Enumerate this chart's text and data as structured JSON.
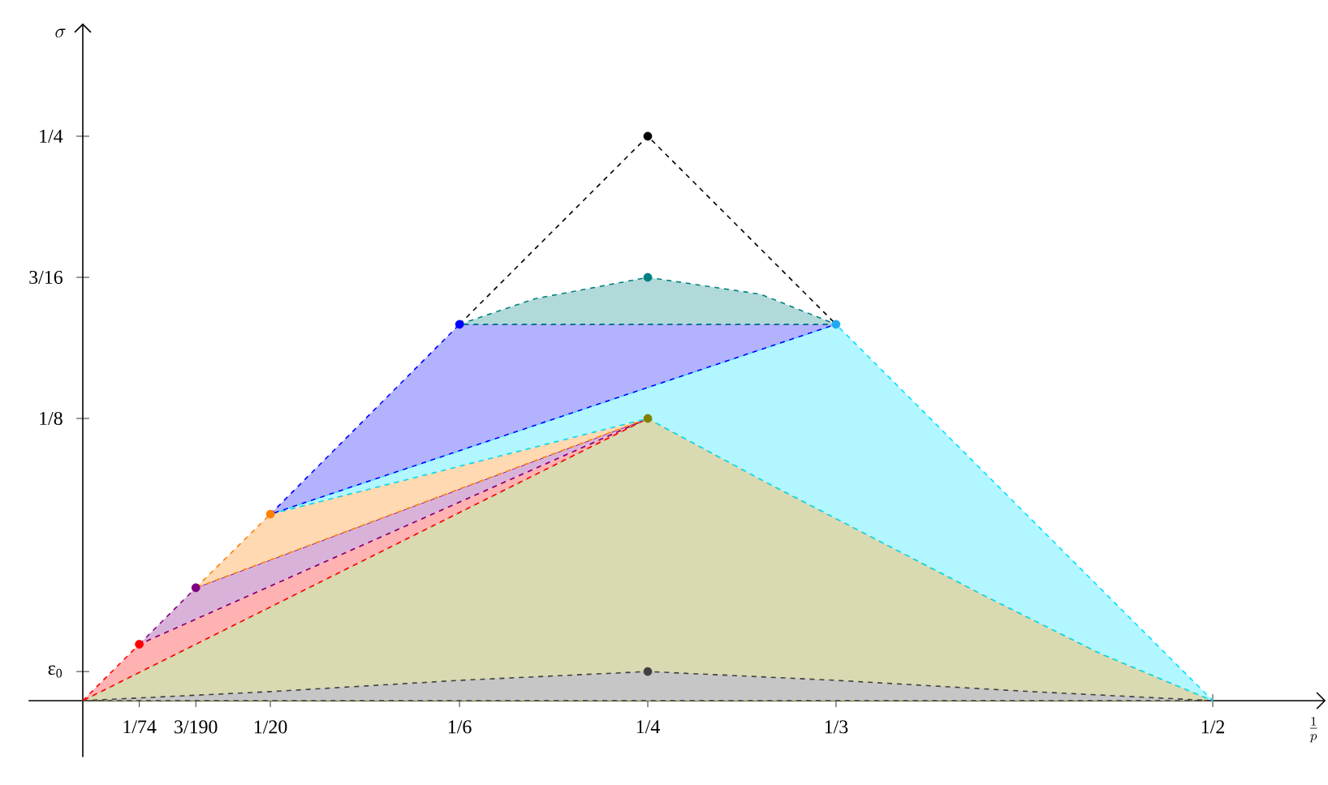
{
  "chart_data": {
    "type": "area",
    "xlabel": "\\frac{1}{p}",
    "ylabel": "\\sigma",
    "xlim": [
      -0.024,
      0.55
    ],
    "ylim": [
      -0.025,
      0.3
    ],
    "xticks": [
      {
        "value": 0.025,
        "label": "1/74"
      },
      {
        "value": 0.05,
        "label": "3/190"
      },
      {
        "value": 0.083,
        "label": "1/20"
      },
      {
        "value": 0.1667,
        "label": "1/6"
      },
      {
        "value": 0.25,
        "label": "1/4"
      },
      {
        "value": 0.3333,
        "label": "1/3"
      },
      {
        "value": 0.5,
        "label": "1/2"
      }
    ],
    "yticks": [
      {
        "value": 0.0129,
        "label": "ε$_{0}$"
      },
      {
        "value": 0.125,
        "label": "1/8"
      },
      {
        "value": 0.1875,
        "label": "3/16"
      },
      {
        "value": 0.25,
        "label": "1/4"
      }
    ],
    "line_style": "dashed",
    "series": [
      {
        "color": "#808000",
        "x": [
          0,
          0.25,
          0.3,
          0.35,
          0.4,
          0.45,
          0.5
        ],
        "values": [
          0,
          0.125,
          0.098,
          0.072,
          0.046,
          0.021,
          0
        ]
      },
      {
        "color": "#404040",
        "x": [
          0,
          0.083,
          0.1667,
          0.25,
          0.3333,
          0.42,
          0.5
        ],
        "values": [
          0,
          0.004,
          0.009,
          0.0129,
          0.009,
          0.004,
          0
        ]
      },
      {
        "color": "#ff0000",
        "x": [
          0,
          0.025,
          0.25
        ],
        "values": [
          0,
          0.025,
          0.125
        ]
      },
      {
        "color": "#800080",
        "x": [
          0.025,
          0.05,
          0.25
        ],
        "values": [
          0.025,
          0.05,
          0.125
        ]
      },
      {
        "color": "#ff8000",
        "x": [
          0.05,
          0.083,
          0.25
        ],
        "values": [
          0.05,
          0.0826,
          0.125
        ]
      },
      {
        "color": "#00e0ff",
        "x": [
          0.083,
          0.3333,
          0.5,
          0.45,
          0.4,
          0.35,
          0.3,
          0.25
        ],
        "values": [
          0.0826,
          0.1667,
          0,
          0.021,
          0.046,
          0.072,
          0.098,
          0.125
        ]
      },
      {
        "color": "#0000ff",
        "x": [
          0.083,
          0.1667,
          0.3333
        ],
        "values": [
          0.0826,
          0.1667,
          0.1667
        ]
      },
      {
        "color": "#008080",
        "x": [
          0.1667,
          0.2,
          0.25,
          0.3,
          0.3333
        ],
        "values": [
          0.1667,
          0.178,
          0.1875,
          0.18,
          0.1667
        ]
      },
      {
        "type": "line",
        "color": "#000000",
        "x": [
          0.1667,
          0.25,
          0.3333
        ],
        "values": [
          0.1667,
          0.25,
          0.1667
        ]
      },
      {
        "type": "scatter",
        "marker": "circle",
        "x": [
          0.25,
          0.25,
          0.1667,
          0.3333,
          0.25,
          0.083,
          0.05,
          0.025,
          0.25
        ],
        "values": [
          0.25,
          0.1875,
          0.1667,
          0.1667,
          0.125,
          0.0826,
          0.05,
          0.025,
          0.0129
        ],
        "colors": [
          "#000000",
          "#008080",
          "#0000ff",
          "#1eaaf0",
          "#808000",
          "#ff8000",
          "#800080",
          "#ff0000",
          "#404040"
        ]
      }
    ]
  }
}
